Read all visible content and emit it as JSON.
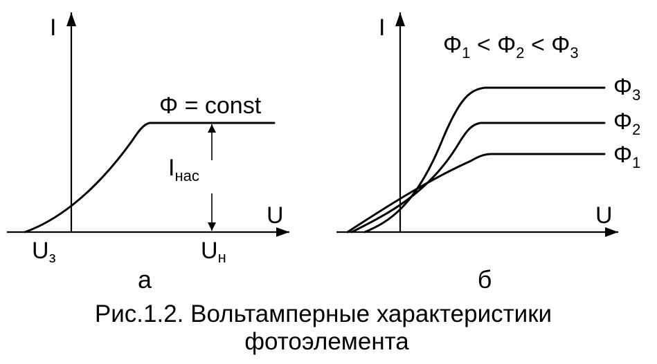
{
  "panel_a": {
    "y_axis_label": "I",
    "x_axis_label": "U",
    "curve_label": "Φ = const",
    "sat_current": {
      "main": "I",
      "sub": "нас"
    },
    "stop_voltage": {
      "main": "U",
      "sub": "з"
    },
    "sat_voltage": {
      "main": "U",
      "sub": "н"
    },
    "panel_letter": "а"
  },
  "panel_b": {
    "y_axis_label": "I",
    "x_axis_label": "U",
    "relation": {
      "sym1": "Φ",
      "sub1": "1",
      "op1": " < ",
      "sym2": "Φ",
      "sub2": "2",
      "op2": " < ",
      "sym3": "Φ",
      "sub3": "3"
    },
    "curves": [
      {
        "symbol": "Φ",
        "sub": "3"
      },
      {
        "symbol": "Φ",
        "sub": "2"
      },
      {
        "symbol": "Φ",
        "sub": "1"
      }
    ],
    "panel_letter": "б"
  },
  "caption": {
    "line1": "Рис.1.2. Вольтамперные характеристики",
    "line2": "фотоэлемента"
  }
}
